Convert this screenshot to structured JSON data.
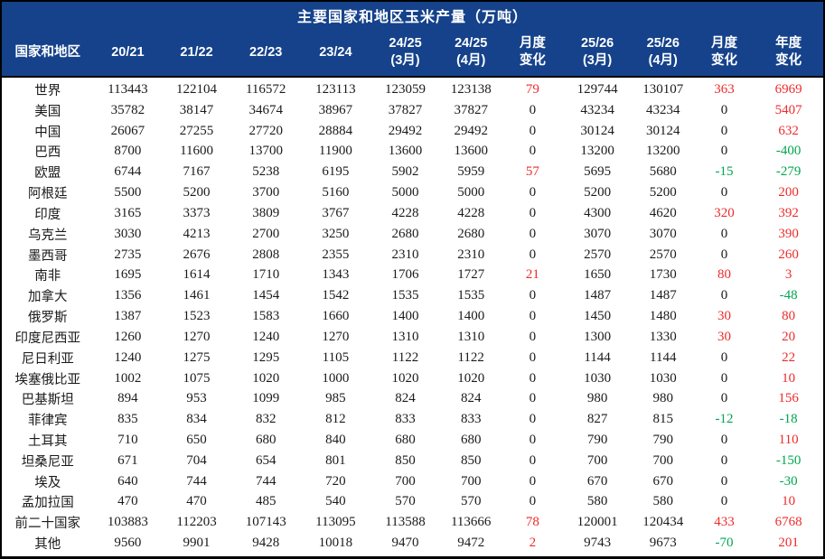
{
  "title": "主要国家和地区玉米产量（万吨）",
  "colors": {
    "header_bg": "#15428B",
    "header_text": "#FFFFFF",
    "body_text": "#1A1A1A",
    "positive_change": "#EE2B2B",
    "negative_change": "#00A550",
    "border": "#000000"
  },
  "header": {
    "columns_display": [
      "国家和地区",
      "20/21",
      "21/22",
      "22/23",
      "23/24",
      "24/25\n(3月)",
      "24/25\n(4月)",
      "月度\n变化",
      "25/26\n(3月)",
      "25/26\n(4月)",
      "月度\n变化",
      "年度\n变化"
    ]
  },
  "chart_data": {
    "type": "table",
    "title": "主要国家和地区玉米产量（万吨）",
    "unit": "万吨",
    "columns": [
      "国家和地区",
      "20/21",
      "21/22",
      "22/23",
      "23/24",
      "24/25 (3月)",
      "24/25 (4月)",
      "月度变化",
      "25/26 (3月)",
      "25/26 (4月)",
      "月度变化",
      "年度变化"
    ],
    "change_column_indices": [
      6,
      9,
      10
    ],
    "color_rule": "positive change red, negative change green, zero black",
    "rows": [
      {
        "name": "世界",
        "values": [
          113443,
          122104,
          116572,
          123113,
          123059,
          123138,
          79,
          129744,
          130107,
          363,
          6969
        ]
      },
      {
        "name": "美国",
        "values": [
          35782,
          38147,
          34674,
          38967,
          37827,
          37827,
          0,
          43234,
          43234,
          0,
          5407
        ]
      },
      {
        "name": "中国",
        "values": [
          26067,
          27255,
          27720,
          28884,
          29492,
          29492,
          0,
          30124,
          30124,
          0,
          632
        ]
      },
      {
        "name": "巴西",
        "values": [
          8700,
          11600,
          13700,
          11900,
          13600,
          13600,
          0,
          13200,
          13200,
          0,
          -400
        ]
      },
      {
        "name": "欧盟",
        "values": [
          6744,
          7167,
          5238,
          6195,
          5902,
          5959,
          57,
          5695,
          5680,
          -15,
          -279
        ]
      },
      {
        "name": "阿根廷",
        "values": [
          5500,
          5200,
          3700,
          5160,
          5000,
          5000,
          0,
          5200,
          5200,
          0,
          200
        ]
      },
      {
        "name": "印度",
        "values": [
          3165,
          3373,
          3809,
          3767,
          4228,
          4228,
          0,
          4300,
          4620,
          320,
          392
        ]
      },
      {
        "name": "乌克兰",
        "values": [
          3030,
          4213,
          2700,
          3250,
          2680,
          2680,
          0,
          3070,
          3070,
          0,
          390
        ]
      },
      {
        "name": "墨西哥",
        "values": [
          2735,
          2676,
          2808,
          2355,
          2310,
          2310,
          0,
          2570,
          2570,
          0,
          260
        ]
      },
      {
        "name": "南非",
        "values": [
          1695,
          1614,
          1710,
          1343,
          1706,
          1727,
          21,
          1650,
          1730,
          80,
          3
        ]
      },
      {
        "name": "加拿大",
        "values": [
          1356,
          1461,
          1454,
          1542,
          1535,
          1535,
          0,
          1487,
          1487,
          0,
          -48
        ]
      },
      {
        "name": "俄罗斯",
        "values": [
          1387,
          1523,
          1583,
          1660,
          1400,
          1400,
          0,
          1450,
          1480,
          30,
          80
        ]
      },
      {
        "name": "印度尼西亚",
        "values": [
          1260,
          1270,
          1240,
          1270,
          1310,
          1310,
          0,
          1300,
          1330,
          30,
          20
        ]
      },
      {
        "name": "尼日利亚",
        "values": [
          1240,
          1275,
          1295,
          1105,
          1122,
          1122,
          0,
          1144,
          1144,
          0,
          22
        ]
      },
      {
        "name": "埃塞俄比亚",
        "values": [
          1002,
          1075,
          1020,
          1000,
          1020,
          1020,
          0,
          1030,
          1030,
          0,
          10
        ]
      },
      {
        "name": "巴基斯坦",
        "values": [
          894,
          953,
          1099,
          985,
          824,
          824,
          0,
          980,
          980,
          0,
          156
        ]
      },
      {
        "name": "菲律宾",
        "values": [
          835,
          834,
          832,
          812,
          833,
          833,
          0,
          827,
          815,
          -12,
          -18
        ]
      },
      {
        "name": "土耳其",
        "values": [
          710,
          650,
          680,
          840,
          680,
          680,
          0,
          790,
          790,
          0,
          110
        ]
      },
      {
        "name": "坦桑尼亚",
        "values": [
          671,
          704,
          654,
          801,
          850,
          850,
          0,
          700,
          700,
          0,
          -150
        ]
      },
      {
        "name": "埃及",
        "values": [
          640,
          744,
          744,
          720,
          700,
          700,
          0,
          670,
          670,
          0,
          -30
        ]
      },
      {
        "name": "孟加拉国",
        "values": [
          470,
          470,
          485,
          540,
          570,
          570,
          0,
          580,
          580,
          0,
          10
        ]
      },
      {
        "name": "前二十国家",
        "values": [
          103883,
          112203,
          107143,
          113095,
          113588,
          113666,
          78,
          120001,
          120434,
          433,
          6768
        ]
      },
      {
        "name": "其他",
        "values": [
          9560,
          9901,
          9428,
          10018,
          9470,
          9472,
          2,
          9743,
          9673,
          -70,
          201
        ]
      }
    ]
  }
}
